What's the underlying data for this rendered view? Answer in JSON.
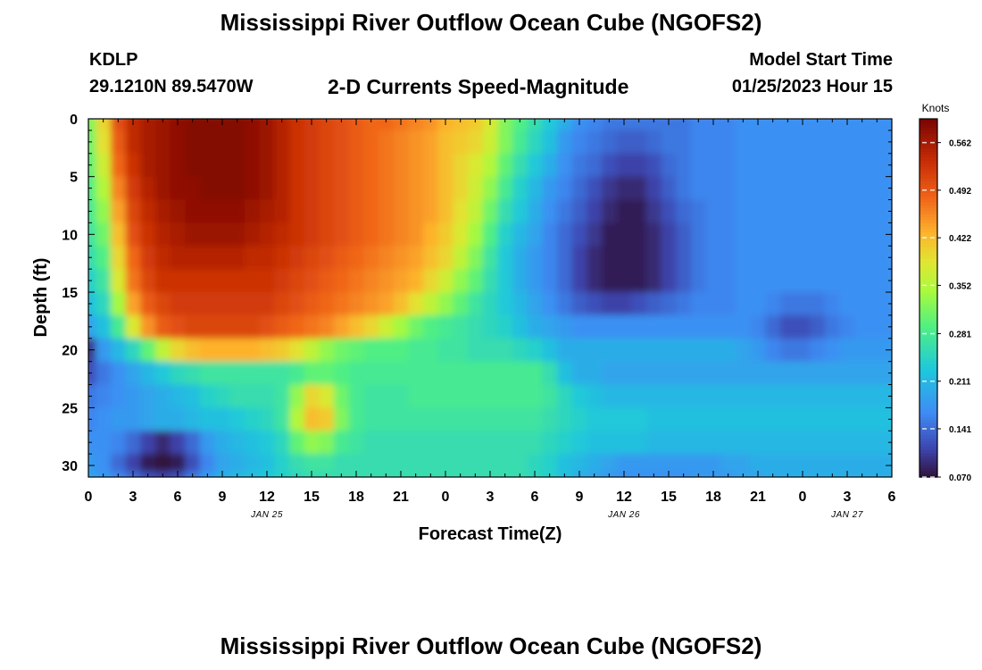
{
  "chart_data": {
    "type": "heatmap",
    "title": "Mississippi River Outflow Ocean Cube (NGOFS2)",
    "station": "KDLP",
    "coordinates": "29.1210N  89.5470W",
    "subtitle": "2-D Currents Speed-Magnitude",
    "model_start_label": "Model Start Time",
    "model_start_value": "01/25/2023 Hour 15",
    "xlabel": "Forecast Time(Z)",
    "ylabel": "Depth (ft)",
    "x_range_hours": [
      0,
      54
    ],
    "y_range_ft": [
      0,
      31
    ],
    "x_ticks": [
      "0",
      "3",
      "6",
      "9",
      "12",
      "15",
      "18",
      "21",
      "0",
      "3",
      "6",
      "9",
      "12",
      "15",
      "18",
      "21",
      "0",
      "3",
      "6"
    ],
    "date_labels": [
      {
        "label": "JAN 25",
        "at_tick": 4
      },
      {
        "label": "JAN 26",
        "at_tick": 12
      },
      {
        "label": "JAN 27",
        "at_tick": 17
      }
    ],
    "y_ticks": [
      0,
      5,
      10,
      15,
      20,
      25,
      30
    ],
    "colorbar": {
      "unit": "Knots",
      "min": 0.07,
      "max": 0.597,
      "ticks": [
        "0.562",
        "0.492",
        "0.422",
        "0.352",
        "0.281",
        "0.211",
        "0.141",
        "0.070"
      ],
      "tick_values": [
        0.562,
        0.492,
        0.422,
        0.352,
        0.281,
        0.211,
        0.141,
        0.07
      ]
    },
    "grid": false,
    "data_rows_depth_ft": [
      0,
      2,
      4,
      6,
      8,
      10,
      12,
      14,
      16,
      18,
      20,
      22,
      24,
      26,
      28,
      30,
      31
    ],
    "data_cols_hour": [
      0,
      1,
      2,
      3,
      4,
      5,
      6,
      7,
      8,
      9,
      10,
      11,
      12,
      13,
      14,
      15,
      16,
      17,
      18,
      19,
      20,
      21,
      22,
      23,
      24,
      25,
      26,
      27,
      28,
      29,
      30,
      31,
      32,
      33,
      34,
      35,
      36,
      37,
      38,
      39,
      40,
      41,
      42,
      43,
      44,
      45,
      46,
      47,
      48,
      49,
      50,
      51,
      52,
      53,
      54
    ],
    "values": [
      [
        0.32,
        0.4,
        0.5,
        0.54,
        0.56,
        0.57,
        0.58,
        0.59,
        0.59,
        0.59,
        0.59,
        0.58,
        0.57,
        0.55,
        0.53,
        0.52,
        0.51,
        0.5,
        0.49,
        0.48,
        0.48,
        0.47,
        0.46,
        0.45,
        0.43,
        0.42,
        0.41,
        0.38,
        0.32,
        0.29,
        0.26,
        0.23,
        0.2,
        0.17,
        0.16,
        0.15,
        0.15,
        0.15,
        0.15,
        0.15,
        0.15,
        0.16,
        0.16,
        0.16,
        0.17,
        0.17,
        0.17,
        0.17,
        0.17,
        0.17,
        0.17,
        0.17,
        0.17,
        0.17,
        0.17
      ],
      [
        0.31,
        0.39,
        0.49,
        0.54,
        0.56,
        0.57,
        0.58,
        0.59,
        0.59,
        0.59,
        0.59,
        0.58,
        0.57,
        0.55,
        0.53,
        0.52,
        0.51,
        0.5,
        0.49,
        0.48,
        0.47,
        0.46,
        0.45,
        0.44,
        0.42,
        0.41,
        0.4,
        0.37,
        0.32,
        0.28,
        0.25,
        0.22,
        0.18,
        0.16,
        0.15,
        0.14,
        0.13,
        0.13,
        0.14,
        0.15,
        0.15,
        0.16,
        0.16,
        0.16,
        0.17,
        0.17,
        0.17,
        0.17,
        0.17,
        0.17,
        0.17,
        0.17,
        0.17,
        0.17,
        0.17
      ],
      [
        0.3,
        0.37,
        0.48,
        0.53,
        0.56,
        0.57,
        0.58,
        0.59,
        0.59,
        0.59,
        0.59,
        0.58,
        0.57,
        0.55,
        0.53,
        0.52,
        0.51,
        0.5,
        0.49,
        0.48,
        0.47,
        0.46,
        0.45,
        0.44,
        0.42,
        0.4,
        0.38,
        0.35,
        0.3,
        0.26,
        0.23,
        0.2,
        0.17,
        0.15,
        0.14,
        0.12,
        0.11,
        0.11,
        0.12,
        0.14,
        0.15,
        0.16,
        0.16,
        0.16,
        0.17,
        0.17,
        0.17,
        0.17,
        0.17,
        0.17,
        0.17,
        0.17,
        0.17,
        0.17,
        0.17
      ],
      [
        0.29,
        0.35,
        0.46,
        0.52,
        0.55,
        0.57,
        0.58,
        0.58,
        0.59,
        0.59,
        0.59,
        0.58,
        0.57,
        0.55,
        0.53,
        0.52,
        0.51,
        0.5,
        0.49,
        0.48,
        0.47,
        0.46,
        0.45,
        0.44,
        0.42,
        0.4,
        0.37,
        0.33,
        0.28,
        0.24,
        0.21,
        0.18,
        0.16,
        0.14,
        0.12,
        0.1,
        0.09,
        0.09,
        0.11,
        0.13,
        0.15,
        0.16,
        0.16,
        0.16,
        0.17,
        0.17,
        0.17,
        0.17,
        0.17,
        0.17,
        0.17,
        0.17,
        0.17,
        0.17,
        0.17
      ],
      [
        0.28,
        0.33,
        0.44,
        0.51,
        0.54,
        0.56,
        0.57,
        0.58,
        0.58,
        0.58,
        0.58,
        0.57,
        0.56,
        0.55,
        0.53,
        0.52,
        0.51,
        0.5,
        0.49,
        0.48,
        0.47,
        0.46,
        0.45,
        0.44,
        0.42,
        0.39,
        0.36,
        0.31,
        0.26,
        0.23,
        0.2,
        0.17,
        0.15,
        0.13,
        0.11,
        0.09,
        0.08,
        0.08,
        0.1,
        0.12,
        0.14,
        0.15,
        0.16,
        0.16,
        0.17,
        0.17,
        0.17,
        0.17,
        0.17,
        0.17,
        0.17,
        0.17,
        0.17,
        0.17,
        0.17
      ],
      [
        0.27,
        0.31,
        0.42,
        0.5,
        0.53,
        0.55,
        0.56,
        0.57,
        0.57,
        0.57,
        0.57,
        0.56,
        0.55,
        0.54,
        0.53,
        0.52,
        0.51,
        0.5,
        0.49,
        0.48,
        0.47,
        0.46,
        0.45,
        0.43,
        0.41,
        0.38,
        0.34,
        0.29,
        0.24,
        0.21,
        0.19,
        0.16,
        0.14,
        0.12,
        0.1,
        0.08,
        0.08,
        0.08,
        0.09,
        0.11,
        0.13,
        0.15,
        0.16,
        0.16,
        0.17,
        0.17,
        0.17,
        0.17,
        0.17,
        0.17,
        0.17,
        0.17,
        0.17,
        0.17,
        0.17
      ],
      [
        0.26,
        0.29,
        0.4,
        0.48,
        0.52,
        0.54,
        0.55,
        0.55,
        0.55,
        0.55,
        0.55,
        0.54,
        0.54,
        0.53,
        0.52,
        0.51,
        0.5,
        0.49,
        0.48,
        0.47,
        0.46,
        0.45,
        0.44,
        0.42,
        0.4,
        0.36,
        0.32,
        0.27,
        0.23,
        0.2,
        0.18,
        0.16,
        0.14,
        0.11,
        0.09,
        0.08,
        0.08,
        0.08,
        0.09,
        0.11,
        0.13,
        0.15,
        0.16,
        0.16,
        0.17,
        0.17,
        0.17,
        0.17,
        0.17,
        0.17,
        0.17,
        0.17,
        0.17,
        0.17,
        0.17
      ],
      [
        0.24,
        0.27,
        0.38,
        0.47,
        0.51,
        0.53,
        0.53,
        0.53,
        0.53,
        0.53,
        0.53,
        0.53,
        0.53,
        0.52,
        0.51,
        0.5,
        0.49,
        0.48,
        0.47,
        0.46,
        0.45,
        0.44,
        0.43,
        0.4,
        0.37,
        0.33,
        0.3,
        0.26,
        0.23,
        0.2,
        0.18,
        0.16,
        0.14,
        0.11,
        0.09,
        0.08,
        0.08,
        0.08,
        0.09,
        0.11,
        0.13,
        0.15,
        0.16,
        0.16,
        0.17,
        0.17,
        0.17,
        0.17,
        0.17,
        0.17,
        0.17,
        0.17,
        0.17,
        0.17,
        0.17
      ],
      [
        0.22,
        0.25,
        0.34,
        0.44,
        0.49,
        0.51,
        0.52,
        0.52,
        0.52,
        0.52,
        0.52,
        0.52,
        0.52,
        0.51,
        0.5,
        0.49,
        0.48,
        0.47,
        0.46,
        0.45,
        0.44,
        0.42,
        0.39,
        0.36,
        0.33,
        0.3,
        0.27,
        0.25,
        0.23,
        0.21,
        0.19,
        0.17,
        0.15,
        0.13,
        0.12,
        0.11,
        0.11,
        0.12,
        0.13,
        0.14,
        0.15,
        0.16,
        0.16,
        0.16,
        0.17,
        0.17,
        0.16,
        0.15,
        0.15,
        0.15,
        0.16,
        0.17,
        0.17,
        0.17,
        0.17
      ],
      [
        0.19,
        0.22,
        0.28,
        0.38,
        0.45,
        0.49,
        0.5,
        0.51,
        0.51,
        0.51,
        0.51,
        0.51,
        0.5,
        0.49,
        0.48,
        0.47,
        0.46,
        0.44,
        0.42,
        0.4,
        0.37,
        0.34,
        0.31,
        0.29,
        0.28,
        0.27,
        0.26,
        0.25,
        0.24,
        0.22,
        0.2,
        0.19,
        0.18,
        0.17,
        0.17,
        0.17,
        0.17,
        0.17,
        0.17,
        0.17,
        0.17,
        0.17,
        0.17,
        0.17,
        0.17,
        0.16,
        0.14,
        0.12,
        0.12,
        0.13,
        0.15,
        0.16,
        0.17,
        0.17,
        0.17
      ],
      [
        0.1,
        0.18,
        0.21,
        0.25,
        0.3,
        0.36,
        0.4,
        0.42,
        0.43,
        0.43,
        0.43,
        0.43,
        0.42,
        0.41,
        0.39,
        0.36,
        0.33,
        0.31,
        0.3,
        0.29,
        0.29,
        0.29,
        0.28,
        0.28,
        0.27,
        0.27,
        0.26,
        0.26,
        0.26,
        0.25,
        0.24,
        0.22,
        0.2,
        0.2,
        0.2,
        0.2,
        0.2,
        0.2,
        0.2,
        0.2,
        0.2,
        0.2,
        0.2,
        0.2,
        0.19,
        0.18,
        0.16,
        0.15,
        0.15,
        0.16,
        0.17,
        0.18,
        0.18,
        0.18,
        0.18
      ],
      [
        0.12,
        0.15,
        0.17,
        0.19,
        0.21,
        0.23,
        0.25,
        0.26,
        0.27,
        0.27,
        0.27,
        0.27,
        0.27,
        0.27,
        0.28,
        0.3,
        0.3,
        0.29,
        0.28,
        0.28,
        0.28,
        0.28,
        0.28,
        0.28,
        0.28,
        0.28,
        0.28,
        0.28,
        0.28,
        0.28,
        0.28,
        0.26,
        0.22,
        0.2,
        0.2,
        0.19,
        0.19,
        0.19,
        0.19,
        0.19,
        0.19,
        0.19,
        0.19,
        0.19,
        0.19,
        0.19,
        0.19,
        0.19,
        0.19,
        0.19,
        0.19,
        0.19,
        0.19,
        0.19,
        0.19
      ],
      [
        0.15,
        0.16,
        0.17,
        0.18,
        0.19,
        0.2,
        0.21,
        0.22,
        0.24,
        0.25,
        0.26,
        0.26,
        0.26,
        0.27,
        0.33,
        0.4,
        0.38,
        0.31,
        0.28,
        0.27,
        0.27,
        0.27,
        0.28,
        0.28,
        0.28,
        0.28,
        0.28,
        0.28,
        0.28,
        0.28,
        0.28,
        0.27,
        0.25,
        0.23,
        0.22,
        0.21,
        0.21,
        0.21,
        0.21,
        0.21,
        0.21,
        0.21,
        0.21,
        0.21,
        0.21,
        0.21,
        0.21,
        0.21,
        0.21,
        0.21,
        0.21,
        0.21,
        0.21,
        0.21,
        0.21
      ],
      [
        0.16,
        0.17,
        0.18,
        0.18,
        0.19,
        0.2,
        0.2,
        0.21,
        0.22,
        0.22,
        0.23,
        0.24,
        0.25,
        0.27,
        0.35,
        0.42,
        0.41,
        0.32,
        0.28,
        0.27,
        0.27,
        0.27,
        0.27,
        0.27,
        0.27,
        0.27,
        0.27,
        0.27,
        0.27,
        0.27,
        0.27,
        0.26,
        0.25,
        0.24,
        0.23,
        0.23,
        0.23,
        0.23,
        0.22,
        0.22,
        0.22,
        0.22,
        0.22,
        0.22,
        0.22,
        0.22,
        0.22,
        0.22,
        0.22,
        0.22,
        0.22,
        0.22,
        0.22,
        0.22,
        0.22
      ],
      [
        0.17,
        0.17,
        0.16,
        0.14,
        0.11,
        0.09,
        0.11,
        0.14,
        0.18,
        0.2,
        0.21,
        0.22,
        0.23,
        0.25,
        0.3,
        0.33,
        0.32,
        0.28,
        0.27,
        0.26,
        0.26,
        0.26,
        0.26,
        0.26,
        0.26,
        0.26,
        0.26,
        0.26,
        0.26,
        0.26,
        0.26,
        0.25,
        0.24,
        0.23,
        0.22,
        0.22,
        0.22,
        0.22,
        0.21,
        0.21,
        0.21,
        0.21,
        0.21,
        0.21,
        0.21,
        0.21,
        0.21,
        0.21,
        0.21,
        0.21,
        0.21,
        0.21,
        0.21,
        0.21,
        0.21
      ],
      [
        0.18,
        0.17,
        0.14,
        0.11,
        0.08,
        0.07,
        0.08,
        0.12,
        0.16,
        0.19,
        0.2,
        0.21,
        0.22,
        0.24,
        0.26,
        0.27,
        0.27,
        0.26,
        0.26,
        0.26,
        0.26,
        0.26,
        0.26,
        0.26,
        0.26,
        0.26,
        0.26,
        0.26,
        0.26,
        0.26,
        0.25,
        0.24,
        0.22,
        0.21,
        0.2,
        0.19,
        0.18,
        0.18,
        0.18,
        0.18,
        0.18,
        0.18,
        0.18,
        0.19,
        0.19,
        0.2,
        0.2,
        0.2,
        0.2,
        0.2,
        0.2,
        0.2,
        0.2,
        0.2,
        0.2
      ],
      [
        0.19,
        0.18,
        0.16,
        0.14,
        0.12,
        0.11,
        0.12,
        0.15,
        0.18,
        0.2,
        0.21,
        0.22,
        0.23,
        0.24,
        0.25,
        0.26,
        0.26,
        0.26,
        0.26,
        0.26,
        0.26,
        0.26,
        0.26,
        0.26,
        0.26,
        0.26,
        0.26,
        0.26,
        0.26,
        0.26,
        0.25,
        0.24,
        0.22,
        0.2,
        0.19,
        0.18,
        0.17,
        0.17,
        0.17,
        0.17,
        0.17,
        0.18,
        0.18,
        0.18,
        0.19,
        0.19,
        0.2,
        0.2,
        0.2,
        0.2,
        0.2,
        0.2,
        0.2,
        0.2,
        0.2
      ]
    ]
  }
}
